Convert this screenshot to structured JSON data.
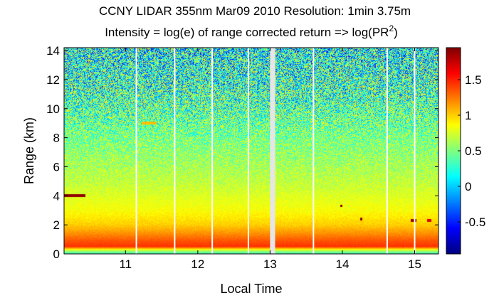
{
  "chart_data": {
    "type": "heatmap",
    "title_line1": "CCNY LIDAR 355nm Mar09 2010 Resolution: 1min 3.75m",
    "title_line2_prefix": "Intensity = log(e) of range corrected return => log(PR",
    "title_line2_sup": "2",
    "title_line2_suffix": ")",
    "xlabel": "Local Time",
    "ylabel": "Range (km)",
    "xlim": [
      10.15,
      15.33
    ],
    "ylim": [
      0,
      14.2
    ],
    "xticks": [
      11,
      12,
      13,
      14,
      15
    ],
    "yticks": [
      0,
      2,
      4,
      6,
      8,
      10,
      12,
      14
    ],
    "colorbar": {
      "clim": [
        -0.95,
        1.95
      ],
      "ticks": [
        -0.5,
        0,
        0.5,
        1,
        1.5
      ],
      "tick_labels": [
        "-0.5",
        "0",
        "0.5",
        "1",
        "1.5"
      ],
      "colormap": "jet"
    },
    "range_profile": [
      {
        "range_km": 0.0,
        "value": 0.35
      },
      {
        "range_km": 0.12,
        "value": 0.45
      },
      {
        "range_km": 0.25,
        "value": 0.7
      },
      {
        "range_km": 0.5,
        "value": 1.45
      },
      {
        "range_km": 0.9,
        "value": 1.35
      },
      {
        "range_km": 1.5,
        "value": 1.15
      },
      {
        "range_km": 2.0,
        "value": 1.0
      },
      {
        "range_km": 3.0,
        "value": 0.85
      },
      {
        "range_km": 5.0,
        "value": 0.68
      },
      {
        "range_km": 7.0,
        "value": 0.55
      },
      {
        "range_km": 9.0,
        "value": 0.42
      },
      {
        "range_km": 11.0,
        "value": 0.3
      },
      {
        "range_km": 13.0,
        "value": 0.2
      },
      {
        "range_km": 14.2,
        "value": 0.15
      }
    ],
    "noise_profile": [
      {
        "range_km": 0.0,
        "amp": 0.02
      },
      {
        "range_km": 4.0,
        "amp": 0.1
      },
      {
        "range_km": 7.0,
        "amp": 0.3
      },
      {
        "range_km": 9.0,
        "amp": 0.55
      },
      {
        "range_km": 11.0,
        "amp": 0.75
      },
      {
        "range_km": 14.2,
        "amp": 0.85
      }
    ],
    "data_gaps_time": [
      11.15,
      11.68,
      12.2,
      12.7,
      13.6,
      14.62,
      15.0
    ],
    "missing_data_interval": [
      13.0,
      13.07
    ],
    "features": [
      {
        "label": "aerosol layer",
        "t_start": 10.15,
        "t_end": 10.45,
        "range_km": 4.0,
        "value": 1.9
      },
      {
        "label": "faint layer",
        "t_start": 11.22,
        "t_end": 11.43,
        "range_km": 9.0,
        "value": 1.05
      },
      {
        "label": "speck",
        "t_start": 13.97,
        "t_end": 14.0,
        "range_km": 3.3,
        "value": 1.9
      },
      {
        "label": "speck",
        "t_start": 14.25,
        "t_end": 14.28,
        "range_km": 2.4,
        "value": 1.9
      },
      {
        "label": "speck",
        "t_start": 14.95,
        "t_end": 15.02,
        "range_km": 2.3,
        "value": 1.9
      },
      {
        "label": "speck",
        "t_start": 15.17,
        "t_end": 15.23,
        "range_km": 2.3,
        "value": 1.7
      }
    ]
  }
}
